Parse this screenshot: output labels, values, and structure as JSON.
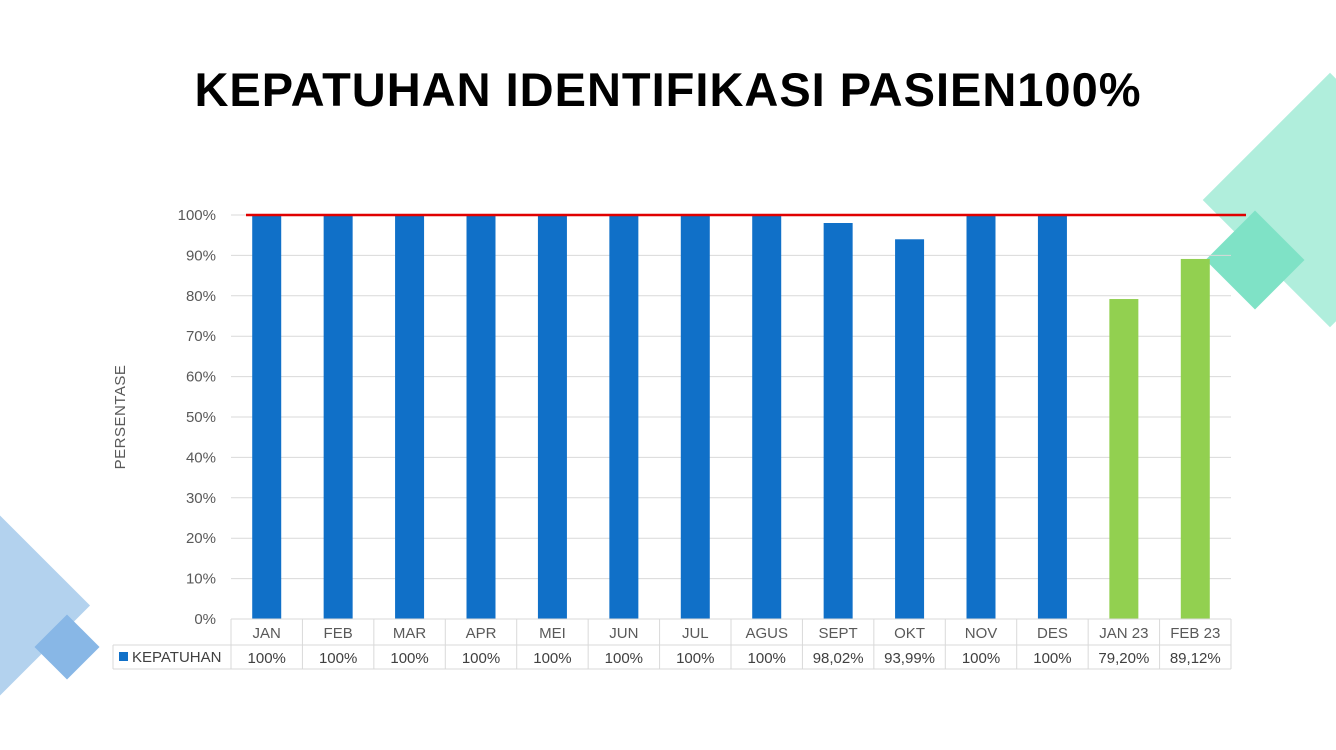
{
  "slide": {
    "title": "KEPATUHAN IDENTIFIKASI PASIEN100%"
  },
  "colors": {
    "bar_primary": "#1070C8",
    "bar_highlight": "#92D050",
    "target_line": "#E00000",
    "decor_teal": "#A8EDD8",
    "decor_blue": "#A9CBEB"
  },
  "chart_data": {
    "type": "bar",
    "title": "",
    "ylabel": "PERSENTASE",
    "xlabel": "",
    "ylim": [
      0,
      100
    ],
    "yticks": [
      "0%",
      "10%",
      "20%",
      "30%",
      "40%",
      "50%",
      "60%",
      "70%",
      "80%",
      "90%",
      "100%"
    ],
    "categories": [
      "JAN",
      "FEB",
      "MAR",
      "APR",
      "MEI",
      "JUN",
      "JUL",
      "AGUS",
      "SEPT",
      "OKT",
      "NOV",
      "DES",
      "JAN 23",
      "FEB 23"
    ],
    "series": [
      {
        "name": "KEPATUHAN",
        "values": [
          100,
          100,
          100,
          100,
          100,
          100,
          100,
          100,
          98.02,
          93.99,
          100,
          100,
          79.2,
          89.12
        ],
        "labels": [
          "100%",
          "100%",
          "100%",
          "100%",
          "100%",
          "100%",
          "100%",
          "100%",
          "98,02%",
          "93,99%",
          "100%",
          "100%",
          "79,20%",
          "89,12%"
        ],
        "highlighted_categories": [
          "JAN 23",
          "FEB 23"
        ]
      }
    ],
    "target_line_value": 100,
    "gridlines": true,
    "data_table": true,
    "legend": "data-table-left"
  }
}
